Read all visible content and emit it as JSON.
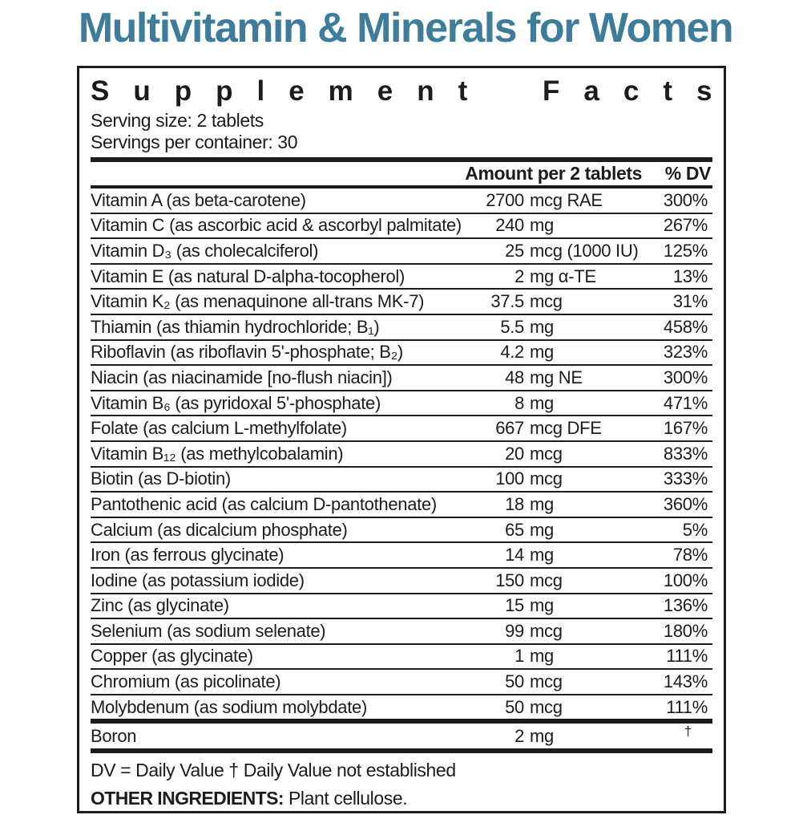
{
  "page_title": "Multivitamin & Minerals for Women",
  "accent_color": "#3d7c9b",
  "panel": {
    "title": "Supplement Facts",
    "serving_size": "Serving size: 2 tablets",
    "servings_per_container": "Servings per container: 30",
    "columns": {
      "amount": "Amount per 2 tablets",
      "dv": "% DV"
    },
    "rows": [
      {
        "name": "Vitamin A (as beta-carotene)",
        "amount_num": "2700",
        "amount_unit": "mcg RAE",
        "dv": "300%"
      },
      {
        "name": "Vitamin C (as ascorbic acid & ascorbyl palmitate)",
        "amount_num": "240",
        "amount_unit": "mg",
        "dv": "267%"
      },
      {
        "name": "Vitamin D₃ (as cholecalciferol)",
        "amount_num": "25",
        "amount_unit": "mcg (1000 IU)",
        "dv": "125%"
      },
      {
        "name": "Vitamin E (as natural D-alpha-tocopherol)",
        "amount_num": "2",
        "amount_unit": "mg α-TE",
        "dv": "13%"
      },
      {
        "name": "Vitamin K₂ (as menaquinone all-trans MK-7)",
        "amount_num": "37.5",
        "amount_unit": "mcg",
        "dv": "31%"
      },
      {
        "name": "Thiamin (as thiamin hydrochloride; B₁)",
        "amount_num": "5.5",
        "amount_unit": "mg",
        "dv": "458%"
      },
      {
        "name": "Riboflavin (as riboflavin 5'-phosphate; B₂)",
        "amount_num": "4.2",
        "amount_unit": "mg",
        "dv": "323%"
      },
      {
        "name": "Niacin (as niacinamide [no-flush niacin])",
        "amount_num": "48",
        "amount_unit": "mg NE",
        "dv": "300%"
      },
      {
        "name": "Vitamin B₆ (as pyridoxal 5'-phosphate)",
        "amount_num": "8",
        "amount_unit": "mg",
        "dv": "471%"
      },
      {
        "name": "Folate (as calcium L-methylfolate)",
        "amount_num": "667",
        "amount_unit": "mcg DFE",
        "dv": "167%"
      },
      {
        "name": "Vitamin B₁₂ (as methylcobalamin)",
        "amount_num": "20",
        "amount_unit": "mcg",
        "dv": "833%"
      },
      {
        "name": "Biotin (as D-biotin)",
        "amount_num": "100",
        "amount_unit": "mcg",
        "dv": "333%"
      },
      {
        "name": "Pantothenic acid (as calcium D-pantothenate)",
        "amount_num": "18",
        "amount_unit": "mg",
        "dv": "360%"
      },
      {
        "name": "Calcium (as dicalcium phosphate)",
        "amount_num": "65",
        "amount_unit": "mg",
        "dv": "5%"
      },
      {
        "name": "Iron (as ferrous glycinate)",
        "amount_num": "14",
        "amount_unit": "mg",
        "dv": "78%"
      },
      {
        "name": "Iodine (as potassium iodide)",
        "amount_num": "150",
        "amount_unit": "mcg",
        "dv": "100%"
      },
      {
        "name": "Zinc (as glycinate)",
        "amount_num": "15",
        "amount_unit": "mg",
        "dv": "136%"
      },
      {
        "name": "Selenium (as sodium selenate)",
        "amount_num": "99",
        "amount_unit": "mcg",
        "dv": "180%"
      },
      {
        "name": "Copper (as glycinate)",
        "amount_num": "1",
        "amount_unit": "mg",
        "dv": "111%"
      },
      {
        "name": "Chromium (as picolinate)",
        "amount_num": "50",
        "amount_unit": "mcg",
        "dv": "143%"
      },
      {
        "name": "Molybdenum (as sodium molybdate)",
        "amount_num": "50",
        "amount_unit": "mcg",
        "dv": "111%"
      }
    ],
    "extra_rows": [
      {
        "name": "Boron",
        "amount_num": "2",
        "amount_unit": "mg",
        "dv": "†"
      }
    ],
    "footnote": "DV = Daily Value † Daily Value not established",
    "other_ingredients": {
      "label": "OTHER INGREDIENTS:",
      "text": "Plant cellulose."
    }
  }
}
